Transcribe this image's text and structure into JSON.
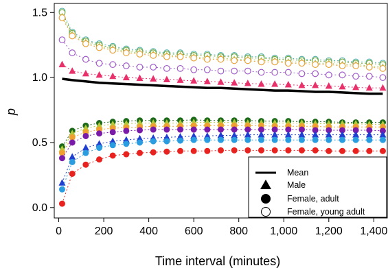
{
  "chart_data": {
    "type": "scatter",
    "xlabel": "Time interval (minutes)",
    "ylabel": "p",
    "xlim": [
      -20,
      1460
    ],
    "ylim": [
      -0.08,
      1.57
    ],
    "xticks": [
      0,
      200,
      400,
      600,
      800,
      1000,
      1200,
      1400
    ],
    "xtick_labels": [
      "0",
      "200",
      "400",
      "600",
      "800",
      "1,000",
      "1,200",
      "1,400"
    ],
    "yticks": [
      0.0,
      0.5,
      1.0,
      1.5
    ],
    "ytick_labels": [
      "0.0",
      "0.5",
      "1.0",
      "1.5"
    ],
    "grid": false,
    "legend_position": "bottom-right",
    "legend": [
      {
        "label": "Mean",
        "symbol": "line"
      },
      {
        "label": "Male",
        "symbol": "filled-triangle"
      },
      {
        "label": "Female, adult",
        "symbol": "filled-circle"
      },
      {
        "label": "Female, young adult",
        "symbol": "open-circle"
      }
    ],
    "x": [
      15,
      60,
      120,
      180,
      240,
      300,
      360,
      420,
      480,
      540,
      600,
      660,
      720,
      780,
      840,
      900,
      960,
      1020,
      1080,
      1140,
      1200,
      1260,
      1320,
      1380,
      1440
    ],
    "mean_line": [
      0.99,
      0.98,
      0.97,
      0.96,
      0.955,
      0.95,
      0.945,
      0.94,
      0.935,
      0.93,
      0.925,
      0.92,
      0.92,
      0.915,
      0.91,
      0.905,
      0.9,
      0.9,
      0.895,
      0.89,
      0.89,
      0.885,
      0.88,
      0.875,
      0.875
    ],
    "series": [
      {
        "marker": "open-circle",
        "color": "#5ab4ac",
        "values": [
          1.51,
          1.35,
          1.29,
          1.26,
          1.24,
          1.22,
          1.21,
          1.2,
          1.19,
          1.19,
          1.18,
          1.18,
          1.17,
          1.17,
          1.16,
          1.16,
          1.15,
          1.15,
          1.14,
          1.14,
          1.13,
          1.13,
          1.12,
          1.12,
          1.11
        ]
      },
      {
        "marker": "open-circle",
        "color": "#76a83f",
        "values": [
          1.5,
          1.34,
          1.28,
          1.25,
          1.23,
          1.21,
          1.2,
          1.19,
          1.18,
          1.18,
          1.17,
          1.17,
          1.16,
          1.16,
          1.15,
          1.15,
          1.14,
          1.14,
          1.13,
          1.13,
          1.12,
          1.12,
          1.11,
          1.11,
          1.1
        ]
      },
      {
        "marker": "filled-triangle",
        "color": "#a8c95a",
        "values": [
          1.47,
          1.33,
          1.27,
          1.24,
          1.22,
          1.2,
          1.19,
          1.18,
          1.17,
          1.17,
          1.16,
          1.15,
          1.15,
          1.14,
          1.14,
          1.13,
          1.13,
          1.12,
          1.12,
          1.11,
          1.11,
          1.1,
          1.1,
          1.09,
          1.08
        ]
      },
      {
        "marker": "open-circle",
        "color": "#e8a33b",
        "values": [
          1.46,
          1.32,
          1.26,
          1.23,
          1.21,
          1.19,
          1.18,
          1.17,
          1.16,
          1.16,
          1.15,
          1.14,
          1.14,
          1.13,
          1.13,
          1.12,
          1.12,
          1.11,
          1.11,
          1.1,
          1.1,
          1.09,
          1.09,
          1.08,
          1.07
        ]
      },
      {
        "marker": "open-circle",
        "color": "#a05cc8",
        "values": [
          1.29,
          1.19,
          1.14,
          1.11,
          1.1,
          1.09,
          1.08,
          1.08,
          1.07,
          1.07,
          1.06,
          1.06,
          1.05,
          1.05,
          1.05,
          1.04,
          1.04,
          1.04,
          1.03,
          1.03,
          1.02,
          1.02,
          1.01,
          1.01,
          1.0
        ]
      },
      {
        "marker": "filled-triangle",
        "color": "#e8316b",
        "values": [
          1.1,
          1.05,
          1.03,
          1.02,
          1.01,
          1.0,
          0.995,
          0.99,
          0.985,
          0.98,
          0.975,
          0.97,
          0.965,
          0.96,
          0.955,
          0.95,
          0.95,
          0.945,
          0.94,
          0.94,
          0.935,
          0.93,
          0.925,
          0.92,
          0.92
        ]
      },
      {
        "marker": "filled-circle",
        "color": "#1a6a1a",
        "values": [
          0.47,
          0.59,
          0.63,
          0.65,
          0.66,
          0.665,
          0.67,
          0.67,
          0.67,
          0.67,
          0.675,
          0.67,
          0.67,
          0.67,
          0.67,
          0.665,
          0.665,
          0.665,
          0.66,
          0.66,
          0.66,
          0.655,
          0.655,
          0.655,
          0.655
        ]
      },
      {
        "marker": "filled-triangle",
        "color": "#b7c93a",
        "values": [
          0.45,
          0.57,
          0.61,
          0.63,
          0.64,
          0.645,
          0.65,
          0.65,
          0.65,
          0.65,
          0.655,
          0.655,
          0.655,
          0.655,
          0.65,
          0.65,
          0.65,
          0.65,
          0.65,
          0.645,
          0.645,
          0.645,
          0.645,
          0.64,
          0.64
        ]
      },
      {
        "marker": "filled-circle",
        "color": "#f0a030",
        "values": [
          0.42,
          0.54,
          0.58,
          0.6,
          0.61,
          0.615,
          0.62,
          0.625,
          0.625,
          0.625,
          0.63,
          0.63,
          0.63,
          0.63,
          0.63,
          0.63,
          0.625,
          0.625,
          0.625,
          0.625,
          0.62,
          0.62,
          0.62,
          0.62,
          0.62
        ]
      },
      {
        "marker": "filled-circle",
        "color": "#7a1aa8",
        "values": [
          0.38,
          0.5,
          0.55,
          0.57,
          0.58,
          0.59,
          0.595,
          0.6,
          0.6,
          0.6,
          0.6,
          0.6,
          0.6,
          0.6,
          0.6,
          0.6,
          0.6,
          0.6,
          0.6,
          0.595,
          0.595,
          0.595,
          0.595,
          0.595,
          0.59
        ]
      },
      {
        "marker": "filled-triangle",
        "color": "#1f3fd1",
        "values": [
          0.19,
          0.39,
          0.46,
          0.49,
          0.51,
          0.52,
          0.53,
          0.535,
          0.54,
          0.545,
          0.55,
          0.55,
          0.555,
          0.555,
          0.56,
          0.56,
          0.56,
          0.56,
          0.56,
          0.56,
          0.56,
          0.56,
          0.56,
          0.56,
          0.56
        ]
      },
      {
        "marker": "filled-circle",
        "color": "#2a9de0",
        "values": [
          0.14,
          0.35,
          0.42,
          0.46,
          0.48,
          0.49,
          0.5,
          0.51,
          0.51,
          0.515,
          0.52,
          0.52,
          0.52,
          0.52,
          0.52,
          0.52,
          0.52,
          0.52,
          0.52,
          0.52,
          0.52,
          0.52,
          0.52,
          0.52,
          0.52
        ]
      },
      {
        "marker": "filled-circle",
        "color": "#e8221f",
        "values": [
          0.03,
          0.26,
          0.33,
          0.37,
          0.4,
          0.41,
          0.42,
          0.425,
          0.43,
          0.435,
          0.435,
          0.435,
          0.44,
          0.44,
          0.44,
          0.44,
          0.44,
          0.44,
          0.44,
          0.44,
          0.435,
          0.435,
          0.435,
          0.435,
          0.435
        ]
      }
    ]
  }
}
